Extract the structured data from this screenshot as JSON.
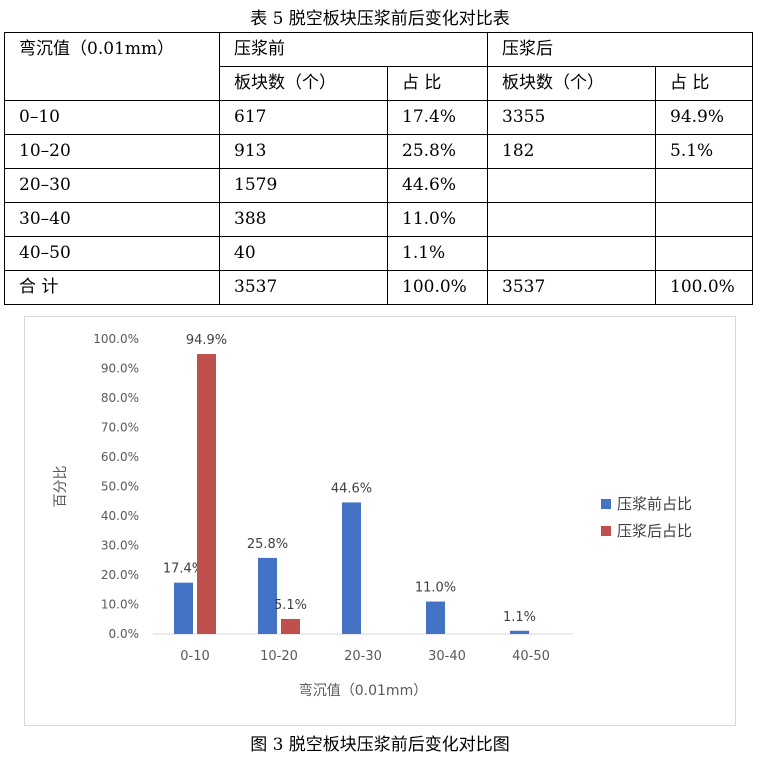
{
  "table": {
    "title": "表 5  脱空板块压浆前后变化对比表",
    "header": {
      "deflection": "弯沉值（0.01mm）",
      "before": "压浆前",
      "after": "压浆后",
      "count": "板块数（个）",
      "ratio": "占  比"
    },
    "rows": [
      {
        "range": "0–10",
        "before_count": "617",
        "before_ratio": "17.4%",
        "after_count": "3355",
        "after_ratio": "94.9%"
      },
      {
        "range": "10–20",
        "before_count": "913",
        "before_ratio": "25.8%",
        "after_count": "182",
        "after_ratio": "5.1%"
      },
      {
        "range": "20–30",
        "before_count": "1579",
        "before_ratio": "44.6%",
        "after_count": "",
        "after_ratio": ""
      },
      {
        "range": "30–40",
        "before_count": "388",
        "before_ratio": "11.0%",
        "after_count": "",
        "after_ratio": ""
      },
      {
        "range": "40–50",
        "before_count": "40",
        "before_ratio": "1.1%",
        "after_count": "",
        "after_ratio": ""
      },
      {
        "range": "合  计",
        "before_count": "3537",
        "before_ratio": "100.0%",
        "after_count": "3537",
        "after_ratio": "100.0%"
      }
    ]
  },
  "figure": {
    "caption": "图 3  脱空板块压浆前后变化对比图"
  },
  "chart_data": {
    "type": "bar",
    "categories": [
      "0-10",
      "10-20",
      "20-30",
      "30-40",
      "40-50"
    ],
    "series": [
      {
        "name": "压浆前占比",
        "values": [
          17.4,
          25.8,
          44.6,
          11.0,
          1.1
        ],
        "labels": [
          "17.4%",
          "25.8%",
          "44.6%",
          "11.0%",
          "1.1%"
        ],
        "color": "#4472c4"
      },
      {
        "name": "压浆后占比",
        "values": [
          94.9,
          5.1,
          null,
          null,
          null
        ],
        "labels": [
          "94.9%",
          "5.1%",
          "",
          "",
          ""
        ],
        "color": "#c0504d"
      }
    ],
    "yticks": [
      "0.0%",
      "10.0%",
      "20.0%",
      "30.0%",
      "40.0%",
      "50.0%",
      "60.0%",
      "70.0%",
      "80.0%",
      "90.0%",
      "100.0%"
    ],
    "ylim": [
      0,
      100
    ],
    "xlabel": "弯沉值（0.01mm）",
    "ylabel": "百分比",
    "legend_position": "right",
    "grid": false
  }
}
